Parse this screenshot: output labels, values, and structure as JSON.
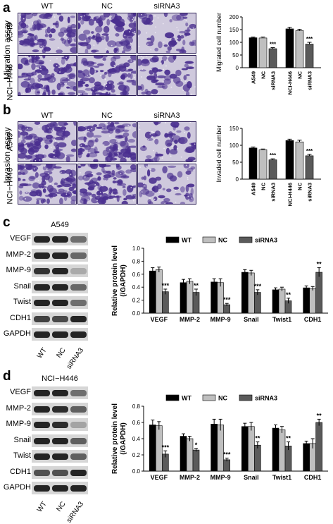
{
  "panels": {
    "a": {
      "letter": "a",
      "assay_label": "Migration assay",
      "col_labels": [
        "WT",
        "NC",
        "siRNA3"
      ],
      "row_labels": [
        "A549",
        "NCI−H446"
      ]
    },
    "b": {
      "letter": "b",
      "assay_label": "Invasion assay",
      "col_labels": [
        "WT",
        "NC",
        "siRNA3"
      ],
      "row_labels": [
        "A549",
        "NCI−H446"
      ]
    },
    "c": {
      "letter": "c",
      "blot_title": "A549",
      "blot_rows": [
        "VEGF",
        "MMP-2",
        "MMP-9",
        "Snail",
        "Twist",
        "CDH1",
        "GAPDH"
      ],
      "lane_labels": [
        "WT",
        "NC",
        "siRNA3"
      ]
    },
    "d": {
      "letter": "d",
      "blot_title": "NCI−H446",
      "blot_rows": [
        "VEGF",
        "MMP-2",
        "MMP-9",
        "Snail",
        "Twist",
        "CDH1",
        "GAPDH"
      ],
      "lane_labels": [
        "WT",
        "NC",
        "siRNA3"
      ]
    }
  },
  "colors": {
    "WT": "#000000",
    "NC": "#bfbfbf",
    "siRNA3": "#5a5a5a",
    "stain": "#4a2f8f"
  },
  "chart_data": [
    {
      "id": "migration",
      "type": "bar",
      "ylabel": "Migrated cell number",
      "ylim": [
        0,
        200
      ],
      "yticks": [
        0,
        50,
        100,
        150,
        200
      ],
      "groups": [
        "A549",
        "NCI-H446"
      ],
      "categories": [
        "A549",
        "NC",
        "siRNA3",
        "NCI-H446",
        "NC",
        "siRNA3"
      ],
      "values": [
        118,
        117,
        75,
        153,
        146,
        93
      ],
      "errors": [
        3,
        4,
        4,
        6,
        5,
        7
      ],
      "bar_colors": [
        "WT",
        "NC",
        "siRNA3",
        "WT",
        "NC",
        "siRNA3"
      ],
      "significance": [
        "",
        "",
        "***",
        "",
        "",
        "***"
      ]
    },
    {
      "id": "invasion",
      "type": "bar",
      "ylabel": "Invaded cell number",
      "ylim": [
        0,
        150
      ],
      "yticks": [
        0,
        50,
        100,
        150
      ],
      "groups": [
        "A549",
        "NCI-H446"
      ],
      "categories": [
        "A549",
        "NC",
        "siRNA3",
        "NCI-H446",
        "NC",
        "siRNA3"
      ],
      "values": [
        92,
        87,
        57,
        114,
        110,
        69
      ],
      "errors": [
        3,
        2,
        3,
        4,
        5,
        4
      ],
      "bar_colors": [
        "WT",
        "NC",
        "siRNA3",
        "WT",
        "NC",
        "siRNA3"
      ],
      "significance": [
        "",
        "",
        "***",
        "",
        "",
        "***"
      ]
    },
    {
      "id": "protein-a549",
      "type": "bar",
      "ylabel": "Relative protein level (/GAPDH)",
      "ylim": [
        0,
        1.0
      ],
      "yticks": [
        0.0,
        0.2,
        0.4,
        0.6,
        0.8,
        1.0
      ],
      "categories": [
        "VEGF",
        "MMP-2",
        "MMP-9",
        "Snail",
        "Twist1",
        "CDH1"
      ],
      "legend": [
        "WT",
        "NC",
        "siRNA3"
      ],
      "series": [
        {
          "name": "WT",
          "values": [
            0.65,
            0.47,
            0.48,
            0.63,
            0.36,
            0.39
          ],
          "errors": [
            0.05,
            0.05,
            0.05,
            0.04,
            0.03,
            0.03
          ]
        },
        {
          "name": "NC",
          "values": [
            0.67,
            0.49,
            0.47,
            0.62,
            0.37,
            0.38
          ],
          "errors": [
            0.04,
            0.04,
            0.06,
            0.04,
            0.03,
            0.03
          ]
        },
        {
          "name": "siRNA3",
          "values": [
            0.33,
            0.32,
            0.13,
            0.32,
            0.19,
            0.63
          ],
          "errors": [
            0.04,
            0.05,
            0.02,
            0.04,
            0.04,
            0.07
          ]
        }
      ],
      "significance": [
        "***",
        "**",
        "***",
        "***",
        "**",
        "**"
      ]
    },
    {
      "id": "protein-h446",
      "type": "bar",
      "ylabel": "Relative protein level (/GAPDH)",
      "ylim": [
        0,
        0.8
      ],
      "yticks": [
        0.0,
        0.2,
        0.4,
        0.6,
        0.8
      ],
      "categories": [
        "VEGF",
        "MMP-2",
        "MMP-9",
        "Snail",
        "Twist1",
        "CDH1"
      ],
      "legend": [
        "WT",
        "NC",
        "siRNA3"
      ],
      "series": [
        {
          "name": "WT",
          "values": [
            0.57,
            0.43,
            0.58,
            0.55,
            0.53,
            0.34
          ],
          "errors": [
            0.06,
            0.03,
            0.06,
            0.04,
            0.04,
            0.03
          ]
        },
        {
          "name": "NC",
          "values": [
            0.56,
            0.4,
            0.57,
            0.55,
            0.51,
            0.34
          ],
          "errors": [
            0.05,
            0.03,
            0.07,
            0.05,
            0.04,
            0.06
          ]
        },
        {
          "name": "siRNA3",
          "values": [
            0.21,
            0.26,
            0.14,
            0.32,
            0.31,
            0.6
          ],
          "errors": [
            0.04,
            0.02,
            0.02,
            0.04,
            0.05,
            0.04
          ]
        }
      ],
      "significance": [
        "***",
        "*",
        "***",
        "**",
        "**",
        "**"
      ]
    }
  ]
}
